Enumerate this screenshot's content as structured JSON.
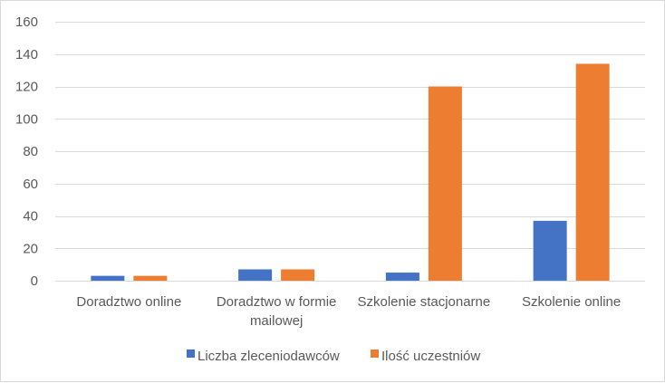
{
  "chart_data": {
    "type": "bar",
    "title": "",
    "xlabel": "",
    "ylabel": "",
    "categories": [
      [
        "Doradztwo online"
      ],
      [
        "Doradztwo w formie",
        "mailowej"
      ],
      [
        "Szkolenie stacjonarne"
      ],
      [
        "Szkolenie online"
      ]
    ],
    "series": [
      {
        "name": "Liczba zleceniodawców",
        "color": "#4472C4",
        "values": [
          3,
          7,
          5,
          37
        ]
      },
      {
        "name": "Ilość uczestniów",
        "color": "#ED7D31",
        "values": [
          3,
          7,
          120,
          134
        ]
      }
    ],
    "ylim": [
      0,
      160
    ],
    "yticks": [
      "0",
      "20",
      "40",
      "60",
      "80",
      "100",
      "120",
      "140",
      "160"
    ],
    "grid": true,
    "legend_position": "bottom"
  }
}
